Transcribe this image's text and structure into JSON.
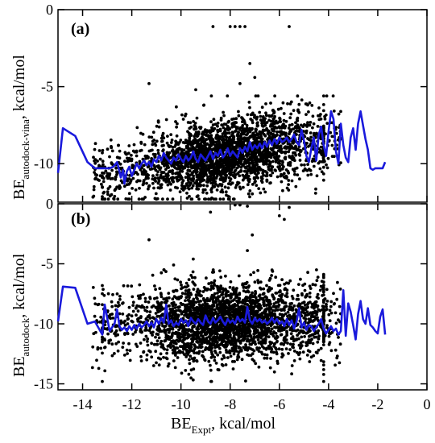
{
  "chart_data": [
    {
      "type": "scatter",
      "panel_label": "(a)",
      "ylabel": "BE",
      "ylabel_subscript": "autodock-vina",
      "ylabel_unit": ", kcal/mol",
      "xlim": [
        -15,
        0
      ],
      "ylim": [
        -12.5,
        0
      ],
      "y_ticks": [
        0,
        -5,
        -10
      ],
      "y_tick_labels": [
        "0",
        "-5",
        "-10"
      ],
      "series": [
        {
          "color": "#1a1adc",
          "kind": "line",
          "x": [
            -15.0,
            -14.8,
            -14.3,
            -13.8,
            -13.5,
            -13.1,
            -12.9,
            -12.75,
            -12.6,
            -12.5,
            -12.45,
            -12.35,
            -12.3,
            -12.2,
            -12.1,
            -12.0,
            -11.9,
            -11.8,
            -11.7,
            -11.6,
            -11.5,
            -11.4,
            -11.3,
            -11.2,
            -11.1,
            -11.0,
            -10.9,
            -10.8,
            -10.7,
            -10.6,
            -10.5,
            -10.4,
            -10.3,
            -10.2,
            -10.1,
            -10.0,
            -9.9,
            -9.8,
            -9.7,
            -9.6,
            -9.5,
            -9.4,
            -9.3,
            -9.2,
            -9.1,
            -9.0,
            -8.9,
            -8.8,
            -8.7,
            -8.6,
            -8.5,
            -8.4,
            -8.3,
            -8.2,
            -8.1,
            -8.0,
            -7.9,
            -7.8,
            -7.7,
            -7.6,
            -7.5,
            -7.4,
            -7.3,
            -7.2,
            -7.1,
            -7.0,
            -6.9,
            -6.8,
            -6.7,
            -6.6,
            -6.5,
            -6.4,
            -6.3,
            -6.2,
            -6.1,
            -6.0,
            -5.9,
            -5.8,
            -5.7,
            -5.6,
            -5.5,
            -5.4,
            -5.3,
            -5.2,
            -5.1,
            -5.0,
            -4.9,
            -4.8,
            -4.7,
            -4.6,
            -4.5,
            -4.4,
            -4.3,
            -4.2,
            -4.1,
            -4.0,
            -3.9,
            -3.8,
            -3.7,
            -3.6,
            -3.5,
            -3.4,
            -3.3,
            -3.2,
            -3.1,
            -3.0,
            -2.9,
            -2.8,
            -2.7,
            -2.6,
            -2.5,
            -2.4,
            -2.3,
            -2.2,
            -2.1,
            -2.0,
            -1.9,
            -1.8,
            -1.7
          ],
          "y": [
            -10.6,
            -7.7,
            -8.2,
            -9.9,
            -10.3,
            -10.3,
            -10.3,
            -10.2,
            -9.9,
            -10.5,
            -10.9,
            -10.4,
            -11.3,
            -10.5,
            -10.2,
            -10.8,
            -10.4,
            -10.0,
            -10.3,
            -10.0,
            -9.8,
            -10.1,
            -9.9,
            -10.2,
            -9.7,
            -9.9,
            -9.5,
            -9.8,
            -9.3,
            -9.6,
            -9.8,
            -10.0,
            -9.6,
            -9.8,
            -9.4,
            -9.7,
            -9.9,
            -9.5,
            -9.8,
            -9.6,
            -9.2,
            -9.7,
            -9.9,
            -9.4,
            -9.6,
            -9.8,
            -9.5,
            -9.2,
            -9.7,
            -9.3,
            -9.5,
            -9.1,
            -9.6,
            -9.4,
            -9.0,
            -9.5,
            -9.2,
            -9.4,
            -9.6,
            -9.0,
            -9.3,
            -8.9,
            -9.2,
            -8.6,
            -9.1,
            -8.8,
            -9.0,
            -8.7,
            -9.0,
            -8.6,
            -8.9,
            -8.5,
            -8.8,
            -8.4,
            -8.7,
            -8.3,
            -8.6,
            -8.5,
            -8.3,
            -8.6,
            -8.4,
            -8.1,
            -8.6,
            -8.8,
            -7.8,
            -8.5,
            -9.5,
            -9.9,
            -9.0,
            -8.3,
            -9.8,
            -8.1,
            -7.6,
            -8.8,
            -9.5,
            -7.9,
            -6.6,
            -7.1,
            -9.2,
            -10.0,
            -7.4,
            -8.8,
            -9.6,
            -9.9,
            -8.3,
            -7.7,
            -9.1,
            -7.4,
            -6.6,
            -7.5,
            -8.4,
            -9.1,
            -10.3,
            -10.4,
            -10.3,
            -10.3,
            -10.3,
            -10.3,
            -9.9
          ]
        }
      ]
    },
    {
      "type": "scatter",
      "panel_label": "(b)",
      "ylabel": "BE",
      "ylabel_subscript": "autodock",
      "ylabel_unit": ", kcal/mol",
      "xlabel": "BE",
      "xlabel_subscript": "Expt",
      "xlabel_unit": ", kcal/mol",
      "xlim": [
        -15,
        0
      ],
      "ylim": [
        -15.5,
        0
      ],
      "x_ticks": [
        -14,
        -12,
        -10,
        -8,
        -6,
        -4,
        -2,
        0
      ],
      "x_tick_labels": [
        "-14",
        "-12",
        "-10",
        "-8",
        "-6",
        "-4",
        "-2",
        "0"
      ],
      "y_ticks": [
        0,
        -5,
        -10,
        -15
      ],
      "y_tick_labels": [
        "0",
        "-5",
        "-10",
        "-15"
      ],
      "series": [
        {
          "color": "#1a1adc",
          "kind": "line",
          "x": [
            -15.0,
            -14.8,
            -14.3,
            -13.8,
            -13.5,
            -13.2,
            -13.1,
            -12.9,
            -12.7,
            -12.6,
            -12.5,
            -12.4,
            -12.3,
            -12.2,
            -12.1,
            -12.0,
            -11.9,
            -11.8,
            -11.7,
            -11.6,
            -11.5,
            -11.4,
            -11.3,
            -11.2,
            -11.1,
            -11.0,
            -10.9,
            -10.8,
            -10.7,
            -10.6,
            -10.5,
            -10.4,
            -10.3,
            -10.2,
            -10.1,
            -10.0,
            -9.9,
            -9.8,
            -9.7,
            -9.6,
            -9.5,
            -9.4,
            -9.3,
            -9.2,
            -9.1,
            -9.0,
            -8.9,
            -8.8,
            -8.7,
            -8.6,
            -8.5,
            -8.4,
            -8.3,
            -8.2,
            -8.1,
            -8.0,
            -7.9,
            -7.8,
            -7.7,
            -7.6,
            -7.5,
            -7.4,
            -7.3,
            -7.2,
            -7.1,
            -7.0,
            -6.9,
            -6.8,
            -6.7,
            -6.6,
            -6.5,
            -6.4,
            -6.3,
            -6.2,
            -6.1,
            -6.0,
            -5.9,
            -5.8,
            -5.7,
            -5.6,
            -5.5,
            -5.4,
            -5.3,
            -5.2,
            -5.1,
            -5.0,
            -4.9,
            -4.8,
            -4.7,
            -4.6,
            -4.5,
            -4.4,
            -4.3,
            -4.2,
            -4.1,
            -4.0,
            -3.9,
            -3.8,
            -3.7,
            -3.6,
            -3.5,
            -3.4,
            -3.3,
            -3.2,
            -3.1,
            -3.0,
            -2.9,
            -2.8,
            -2.7,
            -2.6,
            -2.5,
            -2.4,
            -2.3,
            -2.2,
            -2.1,
            -2.0,
            -1.9,
            -1.8,
            -1.7
          ],
          "y": [
            -9.8,
            -6.9,
            -7.0,
            -10.0,
            -9.8,
            -10.9,
            -8.4,
            -10.6,
            -10.0,
            -8.8,
            -10.2,
            -10.5,
            -10.3,
            -10.6,
            -10.2,
            -10.5,
            -10.1,
            -10.4,
            -10.0,
            -10.3,
            -10.1,
            -9.8,
            -10.2,
            -9.9,
            -10.3,
            -9.6,
            -10.0,
            -9.5,
            -9.9,
            -8.4,
            -10.0,
            -9.7,
            -10.2,
            -9.9,
            -10.1,
            -9.6,
            -9.9,
            -9.7,
            -10.2,
            -9.5,
            -9.8,
            -10.0,
            -9.6,
            -9.9,
            -10.1,
            -9.3,
            -9.8,
            -10.0,
            -9.5,
            -9.9,
            -9.7,
            -9.4,
            -9.8,
            -10.1,
            -9.6,
            -9.9,
            -9.7,
            -10.0,
            -9.4,
            -9.8,
            -9.6,
            -9.9,
            -8.6,
            -9.7,
            -10.0,
            -9.5,
            -9.8,
            -9.6,
            -9.9,
            -9.7,
            -10.0,
            -9.8,
            -9.5,
            -9.9,
            -9.6,
            -10.0,
            -9.8,
            -10.2,
            -9.6,
            -10.1,
            -9.7,
            -10.4,
            -9.8,
            -8.7,
            -10.3,
            -9.9,
            -10.5,
            -10.1,
            -10.2,
            -10.6,
            -10.3,
            -10.0,
            -9.6,
            -10.4,
            -10.8,
            -10.5,
            -10.2,
            -10.6,
            -10.4,
            -10.9,
            -10.6,
            -7.2,
            -11.0,
            -8.3,
            -9.0,
            -10.1,
            -11.3,
            -9.2,
            -8.1,
            -9.6,
            -10.0,
            -8.7,
            -10.1,
            -10.3,
            -10.6,
            -10.8,
            -9.4,
            -8.8,
            -10.9
          ]
        }
      ]
    }
  ]
}
